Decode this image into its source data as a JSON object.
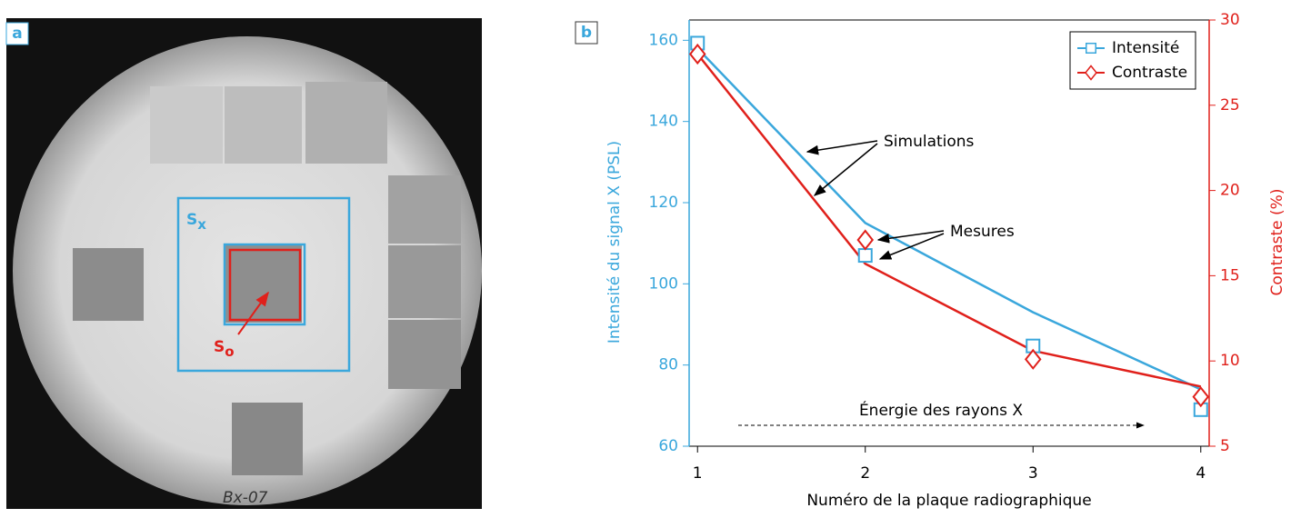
{
  "panel_a": {
    "label": "a",
    "regions": [
      {
        "name": "S",
        "subscript": "x"
      },
      {
        "name": "S",
        "subscript": "o"
      }
    ],
    "plate_mark": "Bx-07"
  },
  "chart_data": {
    "type": "line",
    "panel_label": "b",
    "x_label": "Numéro de la plaque radiographique",
    "y_label": "Intensité du signal X (PSL)",
    "y2_label": "Contraste (%)",
    "xlim": [
      0.95,
      4.05
    ],
    "xticks": [
      1,
      2,
      3,
      4
    ],
    "ylim": [
      60,
      165
    ],
    "yticks": [
      60,
      80,
      100,
      120,
      140,
      160
    ],
    "y2lim": [
      5,
      30
    ],
    "y2ticks": [
      5,
      10,
      15,
      20,
      25,
      30
    ],
    "x": [
      1,
      2,
      3,
      4
    ],
    "series": [
      {
        "name": "Intensité",
        "color": "#3aa7dc",
        "marker": "square",
        "values": [
          159.3,
          107,
          84.7,
          69
        ],
        "simulation": [
          158,
          115,
          93,
          74
        ]
      },
      {
        "name": "Contraste",
        "color": "#e0201b",
        "marker": "diamond",
        "axis": "y2",
        "values": [
          28,
          17.1,
          10.1,
          7.9
        ],
        "simulation": [
          28,
          15.7,
          10.6,
          8.5
        ]
      }
    ],
    "annotations": [
      "Simulations",
      "Mesures",
      "Énergie des rayons X"
    ],
    "legend": "upper right"
  }
}
